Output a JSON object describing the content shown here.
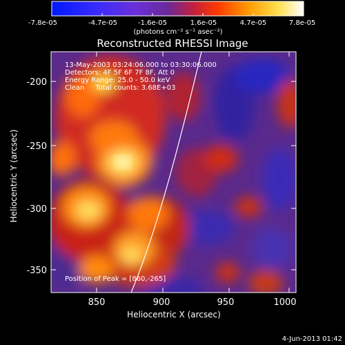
{
  "colorbar": {
    "ticks": [
      "-7.8e-05",
      "-4.7e-05",
      "-1.6e-05",
      "1.6e-05",
      "4.7e-05",
      "7.8e-05"
    ],
    "units": "(photons cm⁻² s⁻¹ asec⁻²)"
  },
  "plot": {
    "title": "Reconstructed RHESSI Image",
    "xlabel": "Heliocentric X (arcsec)",
    "ylabel": "Heliocentric Y (arcsec)",
    "xticks": [
      "850",
      "900",
      "950",
      "1000"
    ],
    "yticks": [
      "-200",
      "-250",
      "-300",
      "-350"
    ],
    "xlim": [
      815,
      1000
    ],
    "ylim": [
      -372,
      -177
    ]
  },
  "annotations": {
    "line1": "13-May-2003 03:24:06.000 to 03:30:06.000",
    "line2": "Detectors: 4F 5F 6F 7F 8F, Att 0",
    "line3": "Energy Range: 25.0 - 50.0 keV",
    "line4": "Clean     Total counts: 3.68E+03",
    "peak": "Position of Peak = [860,-265]"
  },
  "timestamp": "4-Jun-2013 01:42",
  "colors": {
    "low": "#0000ff",
    "mid": "#9a2fc0",
    "high": "#ffffff"
  }
}
